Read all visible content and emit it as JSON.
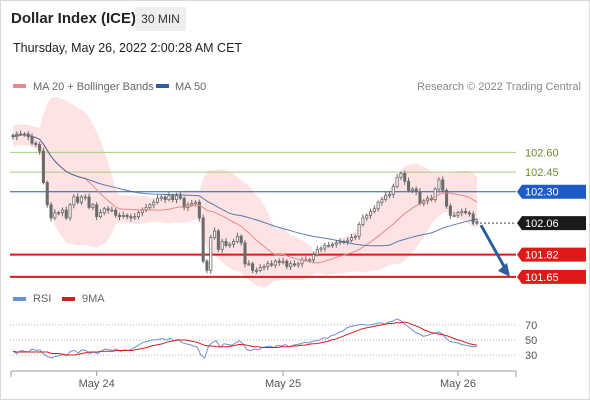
{
  "header": {
    "title": "Dollar Index (ICE)",
    "timeframe": "30 MIN",
    "datetime": "Thursday, May 26, 2022 2:00:28 AM CET"
  },
  "legend": {
    "ma20": "MA 20 + Bollinger Bands",
    "ma50": "MA 50",
    "credit": "Research © 2022 Trading Central",
    "rsi": "RSI",
    "ma9": "9MA"
  },
  "colors": {
    "candle": "#6b6b6b",
    "ma20": "#e88a8a",
    "band": "#fde0e0",
    "ma50": "#2f5e9e",
    "rsi": "#6a8fd8",
    "ma9": "#d22020",
    "resistance": "#a8cc7c",
    "pivot": "#1e5bc6",
    "support": "#e01818",
    "last": "#1a1a1a",
    "arrow": "#2f5e9e"
  },
  "chart_data": [
    {
      "type": "candlestick",
      "x_ticks": [
        "May 24",
        "May 25",
        "May 26"
      ],
      "ylim": [
        101.55,
        103.0
      ],
      "levels": [
        {
          "value": 102.6,
          "label": "102.60",
          "kind": "resistance"
        },
        {
          "value": 102.45,
          "label": "102.45",
          "kind": "resistance"
        },
        {
          "value": 102.3,
          "label": "102.30",
          "kind": "pivot"
        },
        {
          "value": 102.06,
          "label": "102.06",
          "kind": "last"
        },
        {
          "value": 101.82,
          "label": "101.82",
          "kind": "support"
        },
        {
          "value": 101.65,
          "label": "101.65",
          "kind": "support"
        }
      ],
      "close": [
        102.72,
        102.74,
        102.74,
        102.74,
        102.72,
        102.67,
        102.66,
        102.61,
        102.37,
        102.2,
        102.1,
        102.14,
        102.14,
        102.16,
        102.1,
        102.2,
        102.26,
        102.22,
        102.26,
        102.26,
        102.18,
        102.2,
        102.11,
        102.14,
        102.17,
        102.16,
        102.16,
        102.12,
        102.11,
        102.12,
        102.11,
        102.1,
        102.11,
        102.14,
        102.16,
        102.18,
        102.2,
        102.22,
        102.25,
        102.26,
        102.24,
        102.27,
        102.24,
        102.27,
        102.25,
        102.18,
        102.2,
        102.21,
        102.22,
        102.1,
        101.77,
        101.7,
        101.95,
        102.0,
        101.86,
        101.92,
        101.89,
        101.9,
        101.92,
        101.96,
        101.91,
        101.75,
        101.75,
        101.7,
        101.7,
        101.72,
        101.73,
        101.75,
        101.74,
        101.77,
        101.76,
        101.77,
        101.73,
        101.75,
        101.74,
        101.75,
        101.78,
        101.78,
        101.78,
        101.82,
        101.86,
        101.87,
        101.89,
        101.89,
        101.9,
        101.91,
        101.92,
        101.92,
        101.93,
        101.95,
        101.96,
        102.05,
        102.1,
        102.12,
        102.15,
        102.17,
        102.22,
        102.24,
        102.27,
        102.28,
        102.34,
        102.41,
        102.44,
        102.38,
        102.31,
        102.32,
        102.3,
        102.21,
        102.23,
        102.25,
        102.24,
        102.32,
        102.39,
        102.31,
        102.19,
        102.12,
        102.12,
        102.14,
        102.15,
        102.14,
        102.13,
        102.07,
        102.06
      ]
    },
    {
      "type": "line",
      "title": "RSI",
      "yticks": [
        70,
        50,
        30
      ],
      "series": [
        {
          "name": "RSI",
          "values": [
            35,
            32,
            36,
            35,
            34,
            38,
            36,
            37,
            31,
            28,
            26,
            28,
            29,
            31,
            29,
            35,
            36,
            33,
            37,
            36,
            32,
            34,
            32,
            35,
            38,
            37,
            36,
            38,
            35,
            37,
            36,
            38,
            41,
            44,
            47,
            48,
            50,
            50,
            51,
            52,
            50,
            52,
            49,
            51,
            47,
            45,
            44,
            42,
            41,
            30,
            26,
            42,
            47,
            49,
            40,
            45,
            44,
            43,
            46,
            49,
            45,
            37,
            36,
            38,
            37,
            40,
            41,
            42,
            40,
            43,
            42,
            44,
            41,
            43,
            44,
            45,
            47,
            46,
            48,
            49,
            50,
            53,
            52,
            56,
            57,
            60,
            62,
            66,
            68,
            69,
            70,
            71,
            70,
            70,
            71,
            72,
            73,
            71,
            74,
            75,
            78,
            76,
            72,
            68,
            64,
            60,
            58,
            55,
            56,
            58,
            59,
            61,
            58,
            52,
            48,
            47,
            46,
            44,
            43,
            42,
            41,
            41
          ]
        },
        {
          "name": "9MA",
          "values": [
            35,
            34,
            34,
            34,
            34,
            34,
            34,
            34,
            34,
            34,
            32,
            32,
            32,
            31,
            30,
            30,
            30,
            31,
            32,
            33,
            34,
            34,
            34,
            35,
            35,
            35,
            35,
            36,
            36,
            36,
            36,
            36,
            37,
            38,
            39,
            40,
            42,
            43,
            44,
            45,
            47,
            48,
            49,
            50,
            50,
            50,
            49,
            48,
            47,
            45,
            43,
            42,
            42,
            41,
            41,
            41,
            41,
            42,
            43,
            44,
            44,
            43,
            42,
            41,
            41,
            40,
            40,
            40,
            40,
            40,
            41,
            41,
            41,
            42,
            42,
            43,
            43,
            44,
            45,
            45,
            46,
            47,
            48,
            50,
            51,
            53,
            55,
            57,
            59,
            61,
            63,
            65,
            66,
            67,
            68,
            69,
            70,
            71,
            72,
            72,
            73,
            73,
            74,
            73,
            71,
            69,
            67,
            64,
            62,
            60,
            59,
            58,
            57,
            56,
            54,
            52,
            50,
            49,
            47,
            45,
            44,
            43
          ]
        }
      ]
    }
  ]
}
